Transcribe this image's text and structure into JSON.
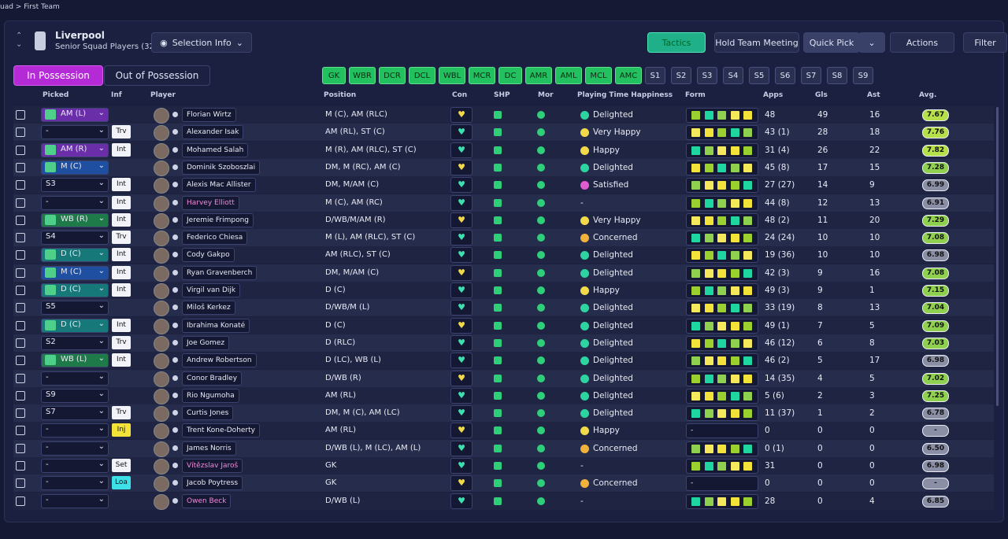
{
  "breadcrumb": "uad > First Team",
  "header": {
    "team": "Liverpool",
    "subtitle": "Senior Squad Players (32)",
    "selection_info": "Selection Info",
    "buttons": [
      "Tactics",
      "Hold Team Meeting",
      "Quick Pick",
      "Actions",
      "Filter"
    ]
  },
  "tabs": [
    "In Possession",
    "Out of Possession"
  ],
  "positions": [
    "GK",
    "WBR",
    "DCR",
    "DCL",
    "WBL",
    "MCR",
    "DC",
    "AMR",
    "AML",
    "MCL",
    "AMC",
    "S1",
    "S2",
    "S3",
    "S4",
    "S5",
    "S6",
    "S7",
    "S8",
    "S9"
  ],
  "table": {
    "columns": [
      "Picked",
      "Inf",
      "Player",
      "Position",
      "Con",
      "SHP",
      "Mor",
      "Playing Time Happiness",
      "Form",
      "Apps",
      "Gls",
      "Ast",
      "Avg."
    ],
    "rows": [
      {
        "picked": "AM (L)",
        "pick_color": "#6a2ea8",
        "inf": null,
        "name": "Florian Wirtz",
        "position": "M (C), AM (RLC)",
        "happiness": "Delighted",
        "mood_color": "#2dd4a0",
        "apps": "48",
        "gls": "49",
        "ast": "16",
        "avg": "7.67",
        "avg_color": "#b5e04a"
      },
      {
        "picked": "-",
        "inf": "Trv",
        "name": "Alexander Isak",
        "position": "AM (RL), ST (C)",
        "happiness": "Very Happy",
        "mood_color": "#f2d94a",
        "apps": "43 (1)",
        "gls": "28",
        "ast": "18",
        "avg": "7.76",
        "avg_color": "#b5e04a"
      },
      {
        "picked": "AM (R)",
        "pick_color": "#6a2ea8",
        "inf": "Int",
        "name": "Mohamed Salah",
        "position": "M (R), AM (RLC), ST (C)",
        "happiness": "Happy",
        "mood_color": "#f2d94a",
        "apps": "31 (4)",
        "gls": "26",
        "ast": "22",
        "avg": "7.82",
        "avg_color": "#b5e04a"
      },
      {
        "picked": "M (C)",
        "pick_color": "#1f4fa0",
        "inf": null,
        "name": "Dominik Szoboszlai",
        "position": "DM, M (RC), AM (C)",
        "happiness": "Delighted",
        "mood_color": "#2dd4a0",
        "apps": "45 (8)",
        "gls": "17",
        "ast": "15",
        "avg": "7.28",
        "avg_color": "#8fd14f"
      },
      {
        "picked": "S3",
        "inf": "Int",
        "name": "Alexis Mac Allister",
        "position": "DM, M/AM (C)",
        "happiness": "Satisfied",
        "mood_color": "#e05ad0",
        "apps": "27 (27)",
        "gls": "14",
        "ast": "9",
        "avg": "6.99",
        "avg_color": "#8a8fa6"
      },
      {
        "picked": "-",
        "inf": "Int",
        "name": "Harvey Elliott",
        "name_color": "#f08ad8",
        "position": "M (C), AM (RC)",
        "happiness": "-",
        "apps": "44 (8)",
        "gls": "12",
        "ast": "13",
        "avg": "6.91",
        "avg_color": "#8a8fa6"
      },
      {
        "picked": "WB (R)",
        "pick_color": "#1f7a4a",
        "inf": "Int",
        "name": "Jeremie Frimpong",
        "position": "D/WB/M/AM (R)",
        "happiness": "Very Happy",
        "mood_color": "#f2d94a",
        "apps": "48 (2)",
        "gls": "11",
        "ast": "20",
        "avg": "7.29",
        "avg_color": "#8fd14f"
      },
      {
        "picked": "S4",
        "inf": "Trv",
        "name": "Federico Chiesa",
        "position": "M (L), AM (RLC), ST (C)",
        "happiness": "Concerned",
        "mood_color": "#f0b23a",
        "apps": "24 (24)",
        "gls": "10",
        "ast": "10",
        "avg": "7.08",
        "avg_color": "#8fd14f"
      },
      {
        "picked": "D (C)",
        "pick_color": "#17787a",
        "inf": "Int",
        "name": "Cody Gakpo",
        "position": "AM (RLC), ST (C)",
        "happiness": "Delighted",
        "mood_color": "#2dd4a0",
        "apps": "19 (36)",
        "gls": "10",
        "ast": "10",
        "avg": "6.98",
        "avg_color": "#8a8fa6"
      },
      {
        "picked": "M (C)",
        "pick_color": "#1f4fa0",
        "inf": "Int",
        "name": "Ryan Gravenberch",
        "position": "DM, M/AM (C)",
        "happiness": "Delighted",
        "mood_color": "#2dd4a0",
        "apps": "42 (3)",
        "gls": "9",
        "ast": "16",
        "avg": "7.08",
        "avg_color": "#8fd14f"
      },
      {
        "picked": "D (C)",
        "pick_color": "#17787a",
        "inf": "Int",
        "name": "Virgil van Dijk",
        "position": "D (C)",
        "happiness": "Happy",
        "mood_color": "#f2d94a",
        "apps": "49 (3)",
        "gls": "9",
        "ast": "1",
        "avg": "7.15",
        "avg_color": "#8fd14f"
      },
      {
        "picked": "S5",
        "inf": null,
        "name": "Miloš Kerkez",
        "position": "D/WB/M (L)",
        "happiness": "Delighted",
        "mood_color": "#2dd4a0",
        "apps": "33 (19)",
        "gls": "8",
        "ast": "13",
        "avg": "7.04",
        "avg_color": "#8fd14f"
      },
      {
        "picked": "D (C)",
        "pick_color": "#17787a",
        "inf": "Int",
        "name": "Ibrahima Konaté",
        "position": "D (C)",
        "happiness": "Delighted",
        "mood_color": "#2dd4a0",
        "apps": "49 (1)",
        "gls": "7",
        "ast": "5",
        "avg": "7.09",
        "avg_color": "#8fd14f"
      },
      {
        "picked": "S2",
        "inf": "Trv",
        "name": "Joe Gomez",
        "position": "D (RLC)",
        "happiness": "Delighted",
        "mood_color": "#2dd4a0",
        "apps": "46 (12)",
        "gls": "6",
        "ast": "8",
        "avg": "7.03",
        "avg_color": "#8fd14f"
      },
      {
        "picked": "WB (L)",
        "pick_color": "#1f7a4a",
        "inf": "Int",
        "name": "Andrew Robertson",
        "position": "D (LC), WB (L)",
        "happiness": "Delighted",
        "mood_color": "#2dd4a0",
        "apps": "46 (2)",
        "gls": "5",
        "ast": "17",
        "avg": "6.98",
        "avg_color": "#8a8fa6"
      },
      {
        "picked": "-",
        "inf": null,
        "name": "Conor Bradley",
        "position": "D/WB (R)",
        "happiness": "Delighted",
        "mood_color": "#2dd4a0",
        "apps": "14 (35)",
        "gls": "4",
        "ast": "5",
        "avg": "7.02",
        "avg_color": "#8fd14f"
      },
      {
        "picked": "S9",
        "inf": null,
        "name": "Rio Ngumoha",
        "position": "AM (RL)",
        "happiness": "Delighted",
        "mood_color": "#2dd4a0",
        "apps": "5 (6)",
        "gls": "2",
        "ast": "3",
        "avg": "7.25",
        "avg_color": "#8fd14f"
      },
      {
        "picked": "S7",
        "inf": "Trv",
        "name": "Curtis Jones",
        "position": "DM, M (C), AM (LC)",
        "happiness": "Delighted",
        "mood_color": "#2dd4a0",
        "apps": "11 (37)",
        "gls": "1",
        "ast": "2",
        "avg": "6.78",
        "avg_color": "#8a8fa6"
      },
      {
        "picked": "-",
        "inf": "Inj",
        "inf_color": "#f2e23a",
        "name": "Trent Kone-Doherty",
        "position": "AM (RL)",
        "happiness": "Happy",
        "mood_color": "#f2d94a",
        "form": "-",
        "apps": "0",
        "gls": "0",
        "ast": "0",
        "avg": "-",
        "avg_color": "#8a8fa6"
      },
      {
        "picked": "-",
        "inf": null,
        "name": "James Norris",
        "position": "D/WB (L), M (LC), AM (L)",
        "happiness": "Concerned",
        "mood_color": "#f0b23a",
        "apps": "0 (1)",
        "gls": "0",
        "ast": "0",
        "avg": "6.50",
        "avg_color": "#8a8fa6"
      },
      {
        "picked": "-",
        "inf": "Set",
        "name": "Vítězslav Jaroš",
        "name_color": "#f08ad8",
        "position": "GK",
        "happiness": "-",
        "apps": "31",
        "gls": "0",
        "ast": "0",
        "avg": "6.98",
        "avg_color": "#8a8fa6"
      },
      {
        "picked": "-",
        "inf": "Loa",
        "inf_color": "#3ee0e8",
        "name": "Jacob Poytress",
        "position": "GK",
        "happiness": "Concerned",
        "mood_color": "#f0b23a",
        "form": "-",
        "apps": "0",
        "gls": "0",
        "ast": "0",
        "avg": "-",
        "avg_color": "#8a8fa6"
      },
      {
        "picked": "-",
        "inf": null,
        "name": "Owen Beck",
        "name_color": "#f08ad8",
        "position": "D/WB (L)",
        "happiness": "-",
        "apps": "28",
        "gls": "0",
        "ast": "4",
        "avg": "6.85",
        "avg_color": "#8a8fa6"
      }
    ]
  }
}
